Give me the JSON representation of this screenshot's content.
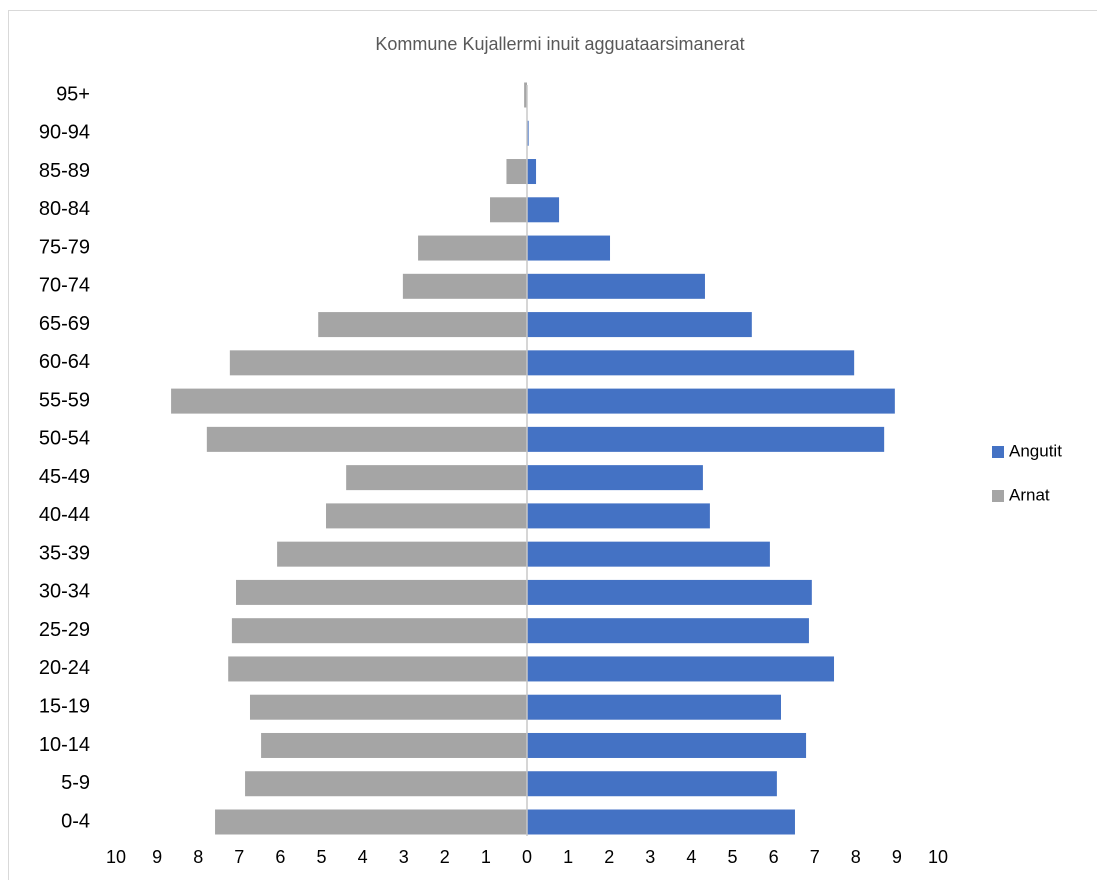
{
  "chart_data": {
    "type": "pyramid",
    "title": "Kommune Kujallermi inuit agguataarsimanerat",
    "categories": [
      "0-4",
      "5-9",
      "10-14",
      "15-19",
      "20-24",
      "25-29",
      "30-34",
      "35-39",
      "40-44",
      "45-49",
      "50-54",
      "55-59",
      "60-64",
      "65-69",
      "70-74",
      "75-79",
      "80-84",
      "85-89",
      "90-94",
      "95+"
    ],
    "series": [
      {
        "name": "Angutit",
        "color": "#4472c4",
        "values": [
          6.52,
          6.08,
          6.79,
          6.18,
          7.47,
          6.86,
          6.93,
          5.91,
          4.45,
          4.28,
          8.69,
          8.95,
          7.96,
          5.47,
          4.33,
          2.02,
          0.78,
          0.22,
          0.04,
          0
        ]
      },
      {
        "name": "Arnat",
        "color": "#a5a5a5",
        "values": [
          -7.59,
          -6.86,
          -6.47,
          -6.74,
          -7.27,
          -7.18,
          -7.08,
          -6.08,
          -4.89,
          -4.4,
          -7.79,
          -8.66,
          -7.23,
          -5.08,
          -3.02,
          -2.65,
          -0.9,
          -0.5,
          0,
          -0.07
        ]
      }
    ],
    "xlim": [
      -10,
      10
    ],
    "xticks": [
      {
        "value": -10,
        "label": "10"
      },
      {
        "value": -9,
        "label": "9"
      },
      {
        "value": -8,
        "label": "8"
      },
      {
        "value": -7,
        "label": "7"
      },
      {
        "value": -6,
        "label": "6"
      },
      {
        "value": -5,
        "label": "5"
      },
      {
        "value": -4,
        "label": "4"
      },
      {
        "value": -3,
        "label": "3"
      },
      {
        "value": -2,
        "label": "2"
      },
      {
        "value": -1,
        "label": "1"
      },
      0,
      1,
      2,
      3,
      4,
      5,
      6,
      7,
      8,
      9,
      10
    ],
    "legend": "right"
  }
}
